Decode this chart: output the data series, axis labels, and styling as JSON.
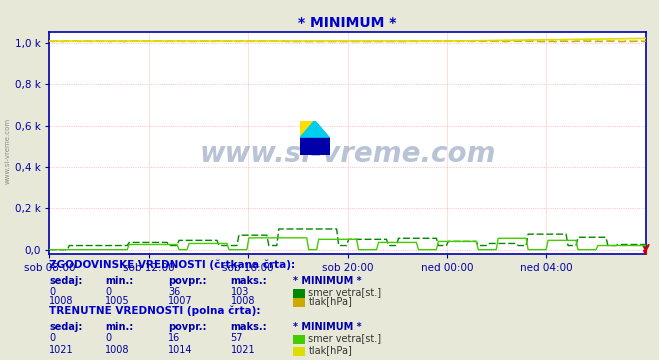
{
  "title": "* MINIMUM *",
  "title_color": "#0000cc",
  "bg_color": "#e8e8d8",
  "plot_bg_color": "#ffffff",
  "grid_color_major": "#ffaaaa",
  "grid_color_minor": "#ffdddd",
  "border_color": "#0000aa",
  "x_labels": [
    "sob 08:00",
    "sob 12:00",
    "sob 16:00",
    "sob 20:00",
    "ned 00:00",
    "ned 04:00"
  ],
  "y_tick_vals": [
    0,
    200,
    400,
    600,
    800,
    1000
  ],
  "y_tick_labels": [
    "0,0",
    "0,2 k",
    "0,4 k",
    "0,6 k",
    "0,8 k",
    "1,0 k"
  ],
  "ymax": 1050,
  "ymin": -20,
  "wind_dir_hist_color": "#008800",
  "wind_dir_curr_color": "#44cc00",
  "pressure_hist_color": "#ccaa00",
  "pressure_curr_color": "#dddd00",
  "watermark_text": "www.si-vreme.com",
  "watermark_color": "#1a3a7a",
  "watermark_alpha": 0.3,
  "legend_text1": "ZGODOVINSKE VREDNOSTI (črtkana črta):",
  "legend_text2": "TRENUTNE VREDNOSTI (polna črta):",
  "col_headers": [
    "sedaj:",
    "min.:",
    "povpr.:",
    "maks.:"
  ],
  "hist_wind_vals": [
    "0",
    "0",
    "36",
    "103"
  ],
  "hist_pressure_vals": [
    "1008",
    "1005",
    "1007",
    "1008"
  ],
  "curr_wind_vals": [
    "0",
    "0",
    "16",
    "57"
  ],
  "curr_pressure_vals": [
    "1021",
    "1008",
    "1014",
    "1021"
  ],
  "wind_label": "smer vetra[st.]",
  "pressure_label": "tlak[hPa]",
  "n_points": 300,
  "red_dot_color": "#cc0000",
  "axis_color": "#0000aa",
  "tick_color": "#0000aa",
  "label_color": "#0000cc",
  "text_color": "#333333",
  "logo_yellow": "#ffdd00",
  "logo_cyan": "#00ccee",
  "logo_blue": "#0000aa"
}
